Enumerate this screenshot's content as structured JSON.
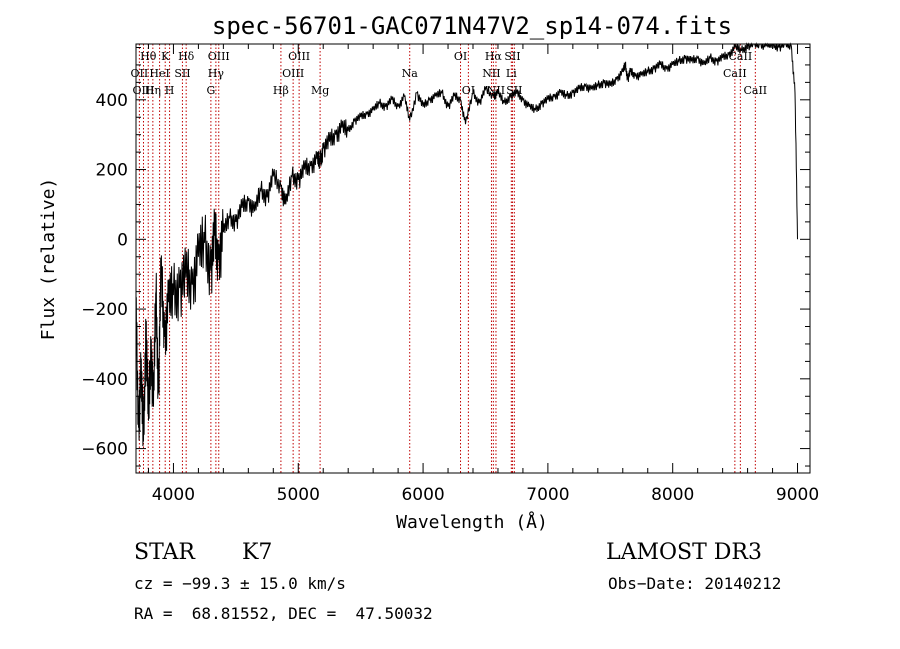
{
  "chart_data": {
    "type": "line",
    "title": "spec-56701-GAC071N47V2_sp14-074.fits",
    "xlabel": "Wavelength (Å)",
    "ylabel": "Flux (relative)",
    "xlim": [
      3700,
      9100
    ],
    "ylim": [
      -670,
      560
    ],
    "xticks": [
      4000,
      5000,
      6000,
      7000,
      8000,
      9000
    ],
    "yticks": [
      -600,
      -400,
      -200,
      0,
      200,
      400
    ],
    "series": [
      {
        "name": "flux",
        "x": [
          3700,
          3720,
          3740,
          3760,
          3780,
          3800,
          3820,
          3840,
          3860,
          3880,
          3900,
          3930,
          3960,
          4000,
          4050,
          4100,
          4150,
          4200,
          4250,
          4300,
          4330,
          4360,
          4400,
          4450,
          4500,
          4550,
          4600,
          4650,
          4700,
          4750,
          4800,
          4861,
          4900,
          4950,
          5000,
          5050,
          5100,
          5150,
          5175,
          5200,
          5250,
          5300,
          5350,
          5400,
          5450,
          5500,
          5550,
          5600,
          5650,
          5700,
          5750,
          5800,
          5850,
          5893,
          5950,
          6000,
          6050,
          6100,
          6150,
          6200,
          6250,
          6300,
          6340,
          6400,
          6450,
          6500,
          6563,
          6600,
          6650,
          6700,
          6750,
          6800,
          6850,
          6900,
          6950,
          7000,
          7050,
          7100,
          7150,
          7200,
          7250,
          7300,
          7350,
          7400,
          7450,
          7500,
          7550,
          7600,
          7620,
          7640,
          7660,
          7700,
          7750,
          7800,
          7850,
          7900,
          7950,
          8000,
          8050,
          8100,
          8150,
          8200,
          8250,
          8300,
          8350,
          8400,
          8450,
          8500,
          8550,
          8600,
          8650,
          8700,
          8750,
          8800,
          8850,
          8900,
          8950,
          8980,
          9000
        ],
        "values": [
          -200,
          -540,
          -380,
          -580,
          -250,
          -520,
          -300,
          -480,
          -150,
          -440,
          -100,
          -280,
          -180,
          -160,
          -140,
          -110,
          -130,
          -50,
          -10,
          -90,
          10,
          -60,
          20,
          60,
          50,
          90,
          110,
          80,
          140,
          120,
          180,
          150,
          100,
          180,
          170,
          200,
          210,
          230,
          220,
          260,
          280,
          300,
          320,
          310,
          340,
          350,
          360,
          370,
          390,
          380,
          400,
          380,
          410,
          340,
          420,
          380,
          400,
          410,
          420,
          380,
          410,
          400,
          330,
          420,
          390,
          430,
          410,
          420,
          390,
          410,
          420,
          400,
          380,
          370,
          390,
          400,
          410,
          420,
          410,
          420,
          430,
          440,
          430,
          440,
          450,
          440,
          460,
          480,
          500,
          460,
          480,
          470,
          470,
          480,
          490,
          500,
          490,
          500,
          510,
          520,
          510,
          520,
          500,
          520,
          510,
          520,
          530,
          550,
          540,
          555,
          560,
          560,
          555,
          560,
          550,
          560,
          555,
          420,
          0
        ]
      }
    ],
    "lines": [
      {
        "label": "Hθ",
        "wavelength": 3798,
        "row": 1
      },
      {
        "label": "OII",
        "wavelength": 3727,
        "row": 2
      },
      {
        "label": "OIII",
        "wavelength": 3760,
        "row": 3
      },
      {
        "label": "K",
        "wavelength": 3934,
        "row": 1
      },
      {
        "label": "HeI",
        "wavelength": 3889,
        "row": 2
      },
      {
        "label": "Hη",
        "wavelength": 3835,
        "row": 3
      },
      {
        "label": "SII",
        "wavelength": 4072,
        "row": 2
      },
      {
        "label": "H",
        "wavelength": 3969,
        "row": 3
      },
      {
        "label": "Hδ",
        "wavelength": 4102,
        "row": 1
      },
      {
        "label": "OIII",
        "wavelength": 4363,
        "row": 1
      },
      {
        "label": "Hγ",
        "wavelength": 4340,
        "row": 2
      },
      {
        "label": "G",
        "wavelength": 4300,
        "row": 3
      },
      {
        "label": "OIII",
        "wavelength": 5007,
        "row": 1
      },
      {
        "label": "OIII",
        "wavelength": 4959,
        "row": 2
      },
      {
        "label": "Hβ",
        "wavelength": 4861,
        "row": 3
      },
      {
        "label": "Mg",
        "wavelength": 5175,
        "row": 3
      },
      {
        "label": "Na",
        "wavelength": 5893,
        "row": 2
      },
      {
        "label": "OI",
        "wavelength": 6300,
        "row": 1
      },
      {
        "label": "OI",
        "wavelength": 6363,
        "row": 3
      },
      {
        "label": "Hα",
        "wavelength": 6563,
        "row": 1
      },
      {
        "label": "SII",
        "wavelength": 6716,
        "row": 1
      },
      {
        "label": "NII",
        "wavelength": 6548,
        "row": 2
      },
      {
        "label": "Li",
        "wavelength": 6707,
        "row": 2
      },
      {
        "label": "NII",
        "wavelength": 6584,
        "row": 3
      },
      {
        "label": "SII",
        "wavelength": 6731,
        "row": 3
      },
      {
        "label": "CaII",
        "wavelength": 8542,
        "row": 1
      },
      {
        "label": "CaII",
        "wavelength": 8498,
        "row": 2
      },
      {
        "label": "CaII",
        "wavelength": 8662,
        "row": 3
      }
    ]
  },
  "info": {
    "class": "STAR",
    "subclass": "K7",
    "survey": "LAMOST DR3",
    "cz": "cz = −99.3 ± 15.0 km/s",
    "obs_date": "Obs−Date: 20140212",
    "radec": "RA =  68.81552, DEC =  47.50032"
  }
}
